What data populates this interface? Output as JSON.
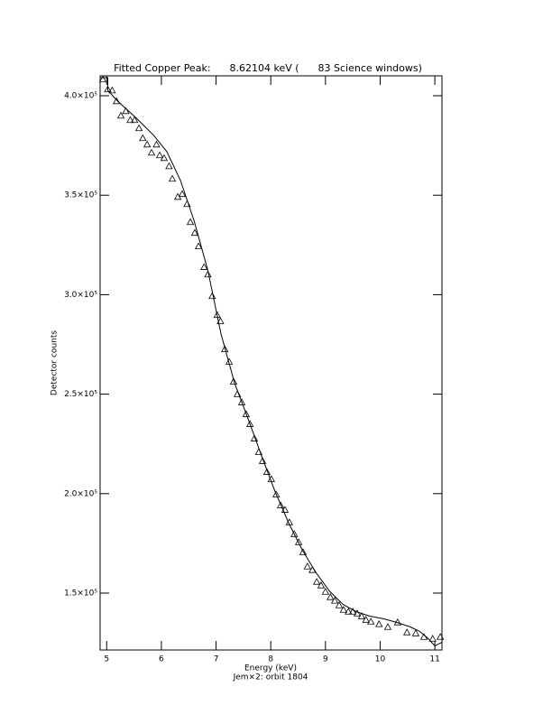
{
  "chart_data": {
    "type": "scatter",
    "title": "Fitted Copper Peak:      8.62104 keV (      83 Science windows)",
    "x_label": "Energy (keV)",
    "subtitle": "Jem×2: orbit 1804",
    "y_label": "Detector counts",
    "color": "#000000",
    "xlim": [
      4.88,
      11.13
    ],
    "xticks": [
      5,
      6,
      7,
      8,
      9,
      10,
      11
    ],
    "ylim": [
      121400,
      410000
    ],
    "yticks": [
      {
        "value": 150000,
        "label": "1.5×10⁵"
      },
      {
        "value": 200000,
        "label": "2.0×10⁵"
      },
      {
        "value": 250000,
        "label": "2.5×10⁵"
      },
      {
        "value": 300000,
        "label": "3.0×10⁵"
      },
      {
        "value": 350000,
        "label": "3.5×10⁵"
      },
      {
        "value": 400000,
        "label": "4.0×10⁵"
      }
    ],
    "x": [
      4.93,
      5.02,
      5.1,
      5.18,
      5.26,
      5.35,
      5.43,
      5.51,
      5.59,
      5.66,
      5.74,
      5.82,
      5.91,
      5.97,
      6.05,
      6.14,
      6.2,
      6.3,
      6.38,
      6.47,
      6.53,
      6.61,
      6.68,
      6.78,
      6.85,
      6.93,
      7.02,
      7.08,
      7.16,
      7.24,
      7.32,
      7.39,
      7.47,
      7.55,
      7.62,
      7.7,
      7.78,
      7.85,
      7.93,
      8.01,
      8.1,
      8.18,
      8.26,
      8.34,
      8.43,
      8.51,
      8.59,
      8.67,
      8.76,
      8.84,
      8.92,
      9.0,
      9.09,
      9.17,
      9.25,
      9.33,
      9.42,
      9.5,
      9.58,
      9.66,
      9.74,
      9.83,
      9.98,
      10.14,
      10.32,
      10.49,
      10.65,
      10.8,
      10.96,
      11.1
    ],
    "values": [
      408200,
      403200,
      402700,
      397300,
      390000,
      392300,
      387800,
      387800,
      383700,
      378700,
      375500,
      371400,
      375500,
      370100,
      368700,
      364600,
      358300,
      349200,
      350600,
      345600,
      336500,
      331100,
      324300,
      313900,
      310200,
      299300,
      289800,
      286700,
      272600,
      266300,
      256300,
      250000,
      245900,
      240000,
      235000,
      227700,
      220900,
      216400,
      210900,
      207300,
      199600,
      194100,
      191900,
      185600,
      179700,
      175600,
      170600,
      163400,
      161600,
      155700,
      153900,
      150700,
      148000,
      146200,
      143900,
      141600,
      140700,
      140700,
      139800,
      138400,
      136600,
      135700,
      134400,
      133000,
      135300,
      130300,
      129800,
      128000,
      127100,
      128000
    ],
    "fit": {
      "x": [
        4.89,
        5.02,
        5.02,
        5.2,
        5.53,
        5.86,
        6.1,
        6.35,
        6.6,
        6.85,
        7.09,
        7.34,
        7.59,
        7.83,
        8.08,
        8.33,
        8.58,
        8.83,
        9.07,
        9.32,
        9.56,
        9.81,
        10.06,
        10.3,
        10.55,
        10.72,
        10.88,
        11.0,
        11.13
      ],
      "values": [
        409100,
        409100,
        402700,
        397300,
        389100,
        380100,
        371900,
        357400,
        337000,
        312100,
        280300,
        255400,
        237300,
        219100,
        201000,
        185100,
        171500,
        160200,
        151100,
        144300,
        140700,
        138400,
        137100,
        135300,
        133000,
        130800,
        127100,
        123500,
        125300
      ]
    }
  }
}
